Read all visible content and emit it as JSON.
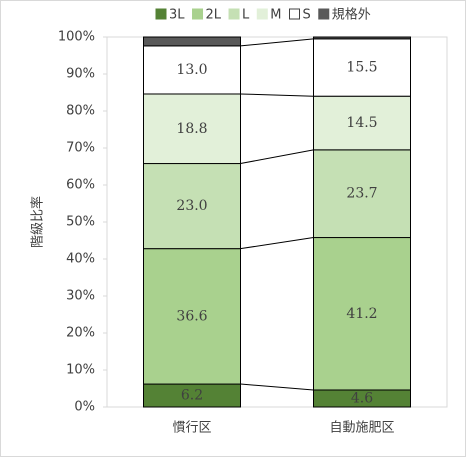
{
  "chart_data": {
    "type": "stacked_bar",
    "ylabel": "階級比率",
    "categories": [
      "慣行区",
      "自動施肥区"
    ],
    "series": [
      {
        "name": "3L",
        "color": "#548235",
        "values": [
          6.2,
          4.6
        ],
        "value_labels": [
          "6.2",
          "4.6"
        ]
      },
      {
        "name": "2L",
        "color": "#a9d18e",
        "values": [
          36.6,
          41.2
        ],
        "value_labels": [
          "36.6",
          "41.2"
        ]
      },
      {
        "name": "L",
        "color": "#c5e0b4",
        "values": [
          23,
          23.7
        ],
        "value_labels": [
          "23.0",
          "23.7"
        ]
      },
      {
        "name": "M",
        "color": "#e2f0d9",
        "values": [
          18.8,
          14.5
        ],
        "value_labels": [
          "18.8",
          "14.5"
        ]
      },
      {
        "name": "S",
        "color": "#ffffff",
        "values": [
          13,
          15.5
        ],
        "value_labels": [
          "13.0",
          "15.5"
        ]
      },
      {
        "name": "規格外",
        "color": "#595959",
        "values": [
          2.4,
          0.5
        ]
      }
    ],
    "ylim": [
      0,
      100
    ],
    "yticks": [
      {
        "value": 0,
        "label": "0%"
      },
      {
        "value": 10,
        "label": "10%"
      },
      {
        "value": 20,
        "label": "20%"
      },
      {
        "value": 30,
        "label": "30%"
      },
      {
        "value": 40,
        "label": "40%"
      },
      {
        "value": 50,
        "label": "50%"
      },
      {
        "value": 60,
        "label": "60%"
      },
      {
        "value": 70,
        "label": "70%"
      },
      {
        "value": 80,
        "label": "80%"
      },
      {
        "value": 90,
        "label": "90%"
      },
      {
        "value": 100,
        "label": "100%"
      }
    ],
    "legend": "top"
  }
}
